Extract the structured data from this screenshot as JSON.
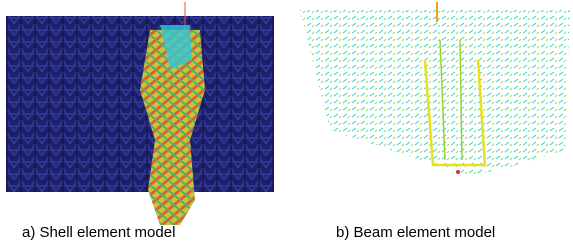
{
  "figure": {
    "panels": [
      {
        "caption": "a) Shell element model"
      },
      {
        "caption": "b) Beam element model"
      }
    ]
  }
}
